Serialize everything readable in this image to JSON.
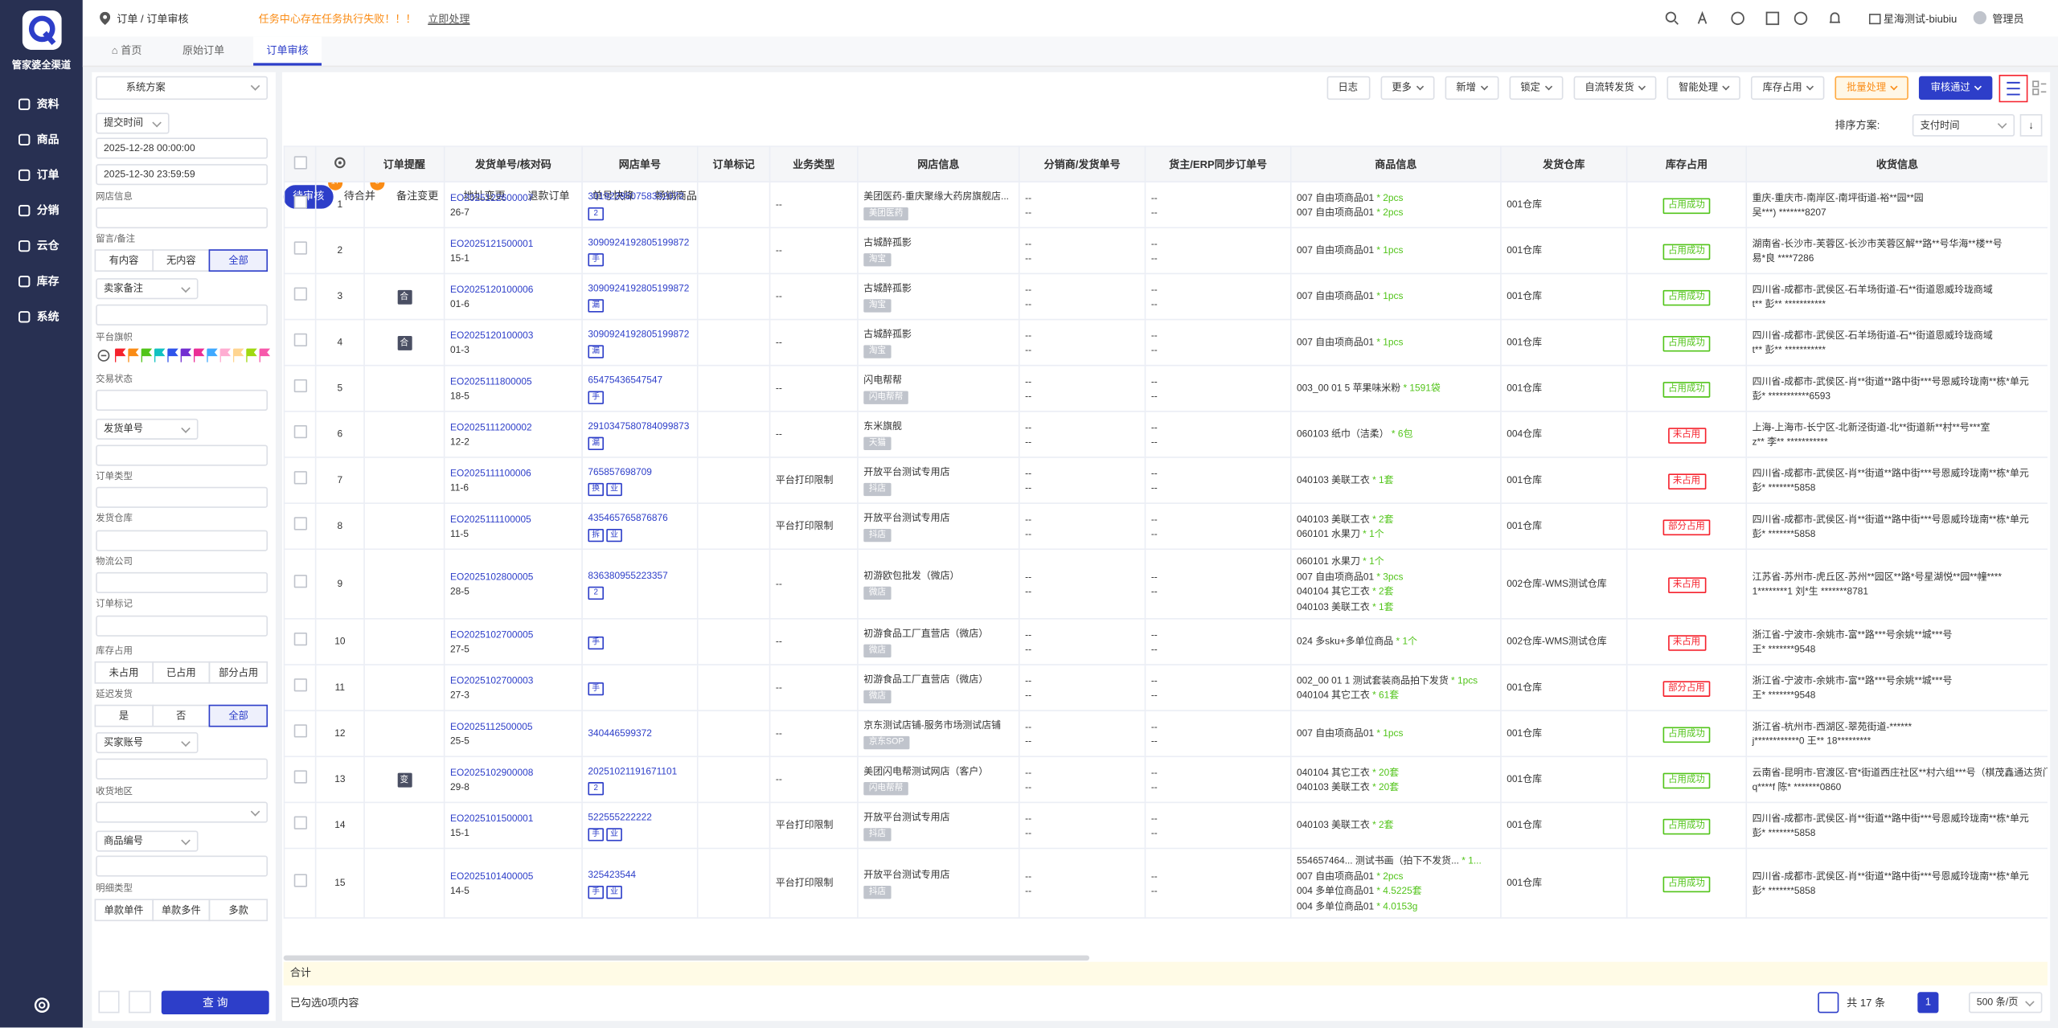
{
  "sidebar": {
    "brand": "管家婆全渠道",
    "menu": [
      "资料",
      "商品",
      "订单",
      "分销",
      "云仓",
      "库存",
      "系统"
    ]
  },
  "topbar": {
    "breadcrumb": "订单 / 订单审核",
    "warning": "任务中心存在任务执行失败！！！",
    "warning_link": "立即处理",
    "account": "星海测试-biubiu",
    "user": "管理员"
  },
  "tabs": [
    "首页",
    "原始订单",
    "订单审核"
  ],
  "filters": {
    "scheme": "系统方案",
    "time_type": "提交时间",
    "start": "2025-12-28 00:00:00",
    "end": "2025-12-30 23:59:59",
    "shop": "网店信息",
    "remark": "留言/备注",
    "remark_options": [
      "有内容",
      "无内容",
      "全部"
    ],
    "seller_remark": "卖家备注",
    "flag": "平台旗帜",
    "trade_status": "交易状态",
    "ship_no": "发货单号",
    "order_type": "订单类型",
    "warehouse": "发货仓库",
    "logistics": "物流公司",
    "order_mark": "订单标记",
    "stock": "库存占用",
    "stock_options": [
      "未占用",
      "已占用",
      "部分占用"
    ],
    "delay": "延迟发货",
    "delay_options": [
      "是",
      "否",
      "全部"
    ],
    "buyer": "买家账号",
    "region": "收货地区",
    "goods_no": "商品编号",
    "detail_type": "明细类型",
    "detail_options": [
      "单款单件",
      "单款多件",
      "多款"
    ],
    "query": "查 询"
  },
  "toolbar": [
    "日志",
    "更多",
    "新增",
    "锁定",
    "自流转发货",
    "智能处理",
    "库存占用",
    "批量处理",
    "审核通过"
  ],
  "status_tabs": [
    {
      "label": "待审核",
      "count": 17
    },
    {
      "label": "待合并",
      "count": 3
    },
    {
      "label": "备注变更"
    },
    {
      "label": "地址变更"
    },
    {
      "label": "退款订单"
    },
    {
      "label": "单号快降"
    },
    {
      "label": "畅销商品"
    }
  ],
  "sort": {
    "label": "排序方案:",
    "value": "支付时间"
  },
  "table": {
    "headers": [
      "订单提醒",
      "发货单号/核对码",
      "网店单号",
      "订单标记",
      "业务类型",
      "网店信息",
      "分销商/发货单号",
      "货主/ERP同步订单号",
      "商品信息",
      "发货仓库",
      "库存占用",
      "收货信息"
    ],
    "rows": [
      {
        "no": 1,
        "order_no": "EO2025122600007",
        "check": "26-7",
        "shop_order": "301922950758332072",
        "shop_tags": [
          "2"
        ],
        "biz": "--",
        "shop": "美团医药-重庆聚缘大药房旗舰店...",
        "platform": "美团医药",
        "dist": [
          "--",
          "--"
        ],
        "owner": [
          "--",
          "--"
        ],
        "goods": [
          {
            "name": "007 自由项商品01",
            "qty": "* 2pcs"
          },
          {
            "name": "007 自由项商品01",
            "qty": "* 2pcs"
          }
        ],
        "warehouse": "001仓库",
        "stock": "占用成功",
        "stock_color": "#52c41a",
        "address": [
          "重庆-重庆市-南岸区-南坪街道-裕**园**园",
          "吴***) *******8207"
        ]
      },
      {
        "no": 2,
        "order_no": "EO2025121500001",
        "check": "15-1",
        "shop_order": "3090924192805199872",
        "shop_tags": [
          "手"
        ],
        "biz": "--",
        "shop": "古城醉孤影",
        "platform": "淘宝",
        "dist": [
          "--",
          "--"
        ],
        "owner": [
          "--",
          "--"
        ],
        "goods": [
          {
            "name": "007 自由项商品01",
            "qty": "* 1pcs"
          }
        ],
        "warehouse": "001仓库",
        "stock": "占用成功",
        "stock_color": "#52c41a",
        "address": [
          "湖南省-长沙市-芙蓉区-长沙市芙蓉区解**路**号华海**楼**号",
          "易*良 ****7286"
        ]
      },
      {
        "no": 3,
        "remind": "合",
        "order_no": "EO2025120100006",
        "check": "01-6",
        "shop_order": "3090924192805199872",
        "shop_tags": [
          "漏"
        ],
        "biz": "--",
        "shop": "古城醉孤影",
        "platform": "淘宝",
        "dist": [
          "--",
          "--"
        ],
        "owner": [
          "--",
          "--"
        ],
        "goods": [
          {
            "name": "007 自由项商品01",
            "qty": "* 1pcs"
          }
        ],
        "warehouse": "001仓库",
        "stock": "占用成功",
        "stock_color": "#52c41a",
        "address": [
          "四川省-成都市-武侯区-石羊场街道-石**街道恩威玲珑商域",
          "t** 彭** ***********"
        ]
      },
      {
        "no": 4,
        "remind": "合",
        "order_no": "EO2025120100003",
        "check": "01-3",
        "shop_order": "3090924192805199872",
        "shop_tags": [
          "漏"
        ],
        "biz": "--",
        "shop": "古城醉孤影",
        "platform": "淘宝",
        "dist": [
          "--",
          "--"
        ],
        "owner": [
          "--",
          "--"
        ],
        "goods": [
          {
            "name": "007 自由项商品01",
            "qty": "* 1pcs"
          }
        ],
        "warehouse": "001仓库",
        "stock": "占用成功",
        "stock_color": "#52c41a",
        "address": [
          "四川省-成都市-武侯区-石羊场街道-石**街道恩威玲珑商域",
          "t** 彭** ***********"
        ]
      },
      {
        "no": 5,
        "order_no": "EO2025111800005",
        "check": "18-5",
        "shop_order": "65475436547547",
        "shop_tags": [
          "手"
        ],
        "biz": "--",
        "shop": "闪电帮帮",
        "platform": "闪电帮帮",
        "dist": [
          "--",
          "--"
        ],
        "owner": [
          "--",
          "--"
        ],
        "goods": [
          {
            "name": "003_00 01 5 苹果味米粉",
            "qty": "* 1591袋"
          }
        ],
        "warehouse": "001仓库",
        "stock": "占用成功",
        "stock_color": "#52c41a",
        "address": [
          "四川省-成都市-武侯区-肖**街道**路中街***号恩威玲珑南**栋*单元",
          "彭* ***********6593"
        ]
      },
      {
        "no": 6,
        "order_no": "EO2025111200002",
        "check": "12-2",
        "shop_order": "2910347580784099873",
        "shop_tags": [
          "漏"
        ],
        "biz": "--",
        "shop": "东米旗舰",
        "platform": "天猫",
        "dist": [
          "--",
          "--"
        ],
        "owner": [
          "--",
          "--"
        ],
        "goods": [
          {
            "name": "060103 纸巾（洁柔）",
            "qty": "* 6包"
          }
        ],
        "warehouse": "004仓库",
        "stock": "未占用",
        "stock_color": "#f5222d",
        "address": [
          "上海-上海市-长宁区-北新泾街道-北**街道新**村**号***室",
          "z** 李** ***********"
        ]
      },
      {
        "no": 7,
        "order_no": "EO2025111100006",
        "check": "11-6",
        "shop_order": "765857698709",
        "shop_tags": [
          "换",
          "业"
        ],
        "biz": "平台打印限制",
        "shop": "开放平台测试专用店",
        "platform": "抖店",
        "dist": [
          "--",
          "--"
        ],
        "owner": [
          "--",
          "--"
        ],
        "goods": [
          {
            "name": "040103 美联工衣",
            "qty": "* 1套"
          }
        ],
        "warehouse": "001仓库",
        "stock": "未占用",
        "stock_color": "#f5222d",
        "address": [
          "四川省-成都市-武侯区-肖**街道**路中街***号恩威玲珑南**栋*单元",
          "彭* *******5858"
        ]
      },
      {
        "no": 8,
        "order_no": "EO2025111100005",
        "check": "11-5",
        "shop_order": "435465765876876",
        "shop_tags": [
          "拆",
          "业"
        ],
        "biz": "平台打印限制",
        "shop": "开放平台测试专用店",
        "platform": "抖店",
        "dist": [
          "--",
          "--"
        ],
        "owner": [
          "--",
          "--"
        ],
        "goods": [
          {
            "name": "040103 美联工衣",
            "qty": "* 2套"
          },
          {
            "name": "060101 水果刀",
            "qty": "* 1个"
          }
        ],
        "warehouse": "001仓库",
        "stock": "部分占用",
        "stock_color": "#f5222d",
        "address": [
          "四川省-成都市-武侯区-肖**街道**路中街***号恩威玲珑南**栋*单元",
          "彭* *******5858"
        ]
      },
      {
        "no": 9,
        "order_no": "EO2025102800005",
        "check": "28-5",
        "shop_order": "836380955223357",
        "shop_tags": [
          "2"
        ],
        "biz": "--",
        "shop": "初游欧包批发（微店）",
        "platform": "微店",
        "dist": [
          "--",
          "--"
        ],
        "owner": [
          "--",
          "--"
        ],
        "goods": [
          {
            "name": "060101 水果刀",
            "qty": "* 1个"
          },
          {
            "name": "007 自由项商品01",
            "qty": "* 3pcs"
          },
          {
            "name": "040104 其它工衣",
            "qty": "* 2套"
          },
          {
            "name": "040103 美联工衣",
            "qty": "* 1套"
          }
        ],
        "warehouse": "002仓库-WMS测试仓库",
        "stock": "未占用",
        "stock_color": "#f5222d",
        "address": [
          "江苏省-苏州市-虎丘区-苏州**园区**路*号星湖悦**园**幢****",
          "1********1 刘*生 *******8781"
        ]
      },
      {
        "no": 10,
        "order_no": "EO2025102700005",
        "check": "27-5",
        "shop_tags": [
          "手"
        ],
        "biz": "--",
        "shop": "初游食品工厂直营店（微店）",
        "platform": "微店",
        "dist": [
          "--",
          "--"
        ],
        "owner": [
          "--",
          "--"
        ],
        "goods": [
          {
            "name": "024 多sku+多单位商品",
            "qty": "* 1个"
          }
        ],
        "warehouse": "002仓库-WMS测试仓库",
        "stock": "未占用",
        "stock_color": "#f5222d",
        "address": [
          "浙江省-宁波市-余姚市-富**路***号余姚**城***号",
          "王* *******9548"
        ]
      },
      {
        "no": 11,
        "order_no": "EO2025102700003",
        "check": "27-3",
        "shop_tags": [
          "手"
        ],
        "biz": "--",
        "shop": "初游食品工厂直营店（微店）",
        "platform": "微店",
        "dist": [
          "--",
          "--"
        ],
        "owner": [
          "--",
          "--"
        ],
        "goods": [
          {
            "name": "002_00 01 1 测试套装商品拍下发货",
            "qty": "* 1pcs"
          },
          {
            "name": "040104 其它工衣",
            "qty": "* 61套"
          }
        ],
        "warehouse": "001仓库",
        "stock": "部分占用",
        "stock_color": "#f5222d",
        "address": [
          "浙江省-宁波市-余姚市-富**路***号余姚**城***号",
          "王* *******9548"
        ]
      },
      {
        "no": 12,
        "order_no": "EO2025112500005",
        "check": "25-5",
        "shop_order": "340446599372",
        "shop_tags": [],
        "biz": "--",
        "shop": "京东测试店铺-服务市场测试店铺",
        "platform": "京东SOP",
        "dist": [
          "--",
          "--"
        ],
        "owner": [
          "--",
          "--"
        ],
        "goods": [
          {
            "name": "007 自由项商品01",
            "qty": "* 1pcs"
          }
        ],
        "warehouse": "001仓库",
        "stock": "占用成功",
        "stock_color": "#52c41a",
        "address": [
          "浙江省-杭州市-西湖区-翠苑街道-******",
          "j************0 王** 18*********"
        ]
      },
      {
        "no": 13,
        "remind": "变",
        "order_no": "EO2025102900008",
        "check": "29-8",
        "shop_order": "20251021191671101",
        "shop_tags": [
          "2"
        ],
        "biz": "--",
        "shop": "美团闪电帮测试网店（客户）",
        "platform": "闪电帮帮",
        "dist": [
          "--",
          "--"
        ],
        "owner": [
          "--",
          "--"
        ],
        "goods": [
          {
            "name": "040104 其它工衣",
            "qty": "* 20套"
          },
          {
            "name": "040103 美联工衣",
            "qty": "* 20套"
          }
        ],
        "warehouse": "001仓库",
        "stock": "占用成功",
        "stock_color": "#52c41a",
        "address": [
          "云南省-昆明市-官渡区-官*街道西庄社区**村六组***号（棋茂鑫通达货门）",
          "q****f 陈* *******0860"
        ]
      },
      {
        "no": 14,
        "order_no": "EO2025101500001",
        "check": "15-1",
        "shop_order": "522555222222",
        "shop_tags": [
          "手",
          "业"
        ],
        "biz": "平台打印限制",
        "shop": "开放平台测试专用店",
        "platform": "抖店",
        "dist": [
          "--",
          "--"
        ],
        "owner": [
          "--",
          "--"
        ],
        "goods": [
          {
            "name": "040103 美联工衣",
            "qty": "* 2套"
          }
        ],
        "warehouse": "001仓库",
        "stock": "占用成功",
        "stock_color": "#52c41a",
        "address": [
          "四川省-成都市-武侯区-肖**街道**路中街***号恩威玲珑南**栋*单元",
          "彭* *******5858"
        ]
      },
      {
        "no": 15,
        "order_no": "EO2025101400005",
        "check": "14-5",
        "shop_order": "325423544",
        "shop_tags": [
          "手",
          "业"
        ],
        "biz": "平台打印限制",
        "shop": "开放平台测试专用店",
        "platform": "抖店",
        "dist": [
          "--",
          "--"
        ],
        "owner": [
          "--",
          "--"
        ],
        "goods": [
          {
            "name": "554657464... 测试书画（拍下不发货...",
            "qty": "* 1..."
          },
          {
            "name": "007 自由项商品01",
            "qty": "* 2pcs"
          },
          {
            "name": "004 多单位商品01",
            "qty": "* 4.5225套"
          },
          {
            "name": "004 多单位商品01",
            "qty": "* 4.0153g"
          }
        ],
        "warehouse": "001仓库",
        "stock": "占用成功",
        "stock_color": "#52c41a",
        "address": [
          "四川省-成都市-武侯区-肖**街道**路中街***号恩威玲珑南**栋*单元",
          "彭* *******5858"
        ]
      }
    ],
    "total": "合计"
  },
  "footer": {
    "selected": "已勾选0项内容",
    "total": "共 17 条",
    "page": 1,
    "page_size": "500 条/页"
  }
}
